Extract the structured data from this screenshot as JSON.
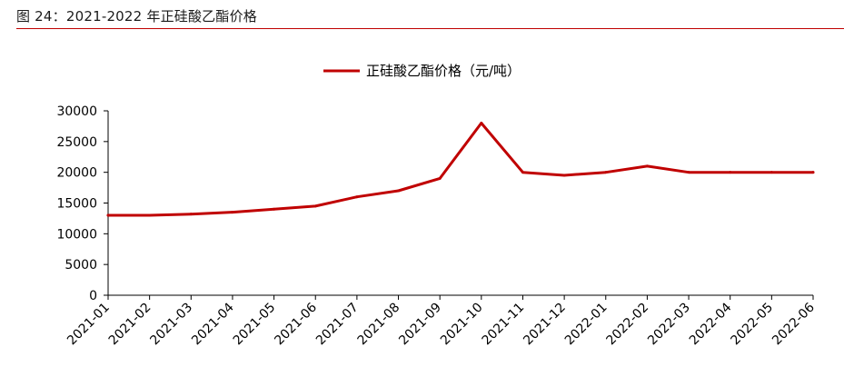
{
  "figure": {
    "title": "图 24：2021-2022 年正硅酸乙酯价格",
    "accent_color": "#c00000"
  },
  "chart_data": {
    "type": "line",
    "categories": [
      "2021-01",
      "2021-02",
      "2021-03",
      "2021-04",
      "2021-05",
      "2021-06",
      "2021-07",
      "2021-08",
      "2021-09",
      "2021-10",
      "2021-11",
      "2021-12",
      "2022-01",
      "2022-02",
      "2022-03",
      "2022-04",
      "2022-05",
      "2022-06"
    ],
    "series": [
      {
        "name": "正硅酸乙酯价格（元/吨）",
        "color": "#c00000",
        "values": [
          13000,
          13000,
          13200,
          13500,
          14000,
          14500,
          16000,
          17000,
          19000,
          28000,
          20000,
          19500,
          20000,
          21000,
          20000,
          20000,
          20000,
          20000
        ]
      }
    ],
    "ylim": [
      0,
      30000
    ],
    "yticks": [
      0,
      5000,
      10000,
      15000,
      20000,
      25000,
      30000
    ],
    "grid": false,
    "legend_position": "top-center",
    "xlabel": "",
    "ylabel": ""
  }
}
